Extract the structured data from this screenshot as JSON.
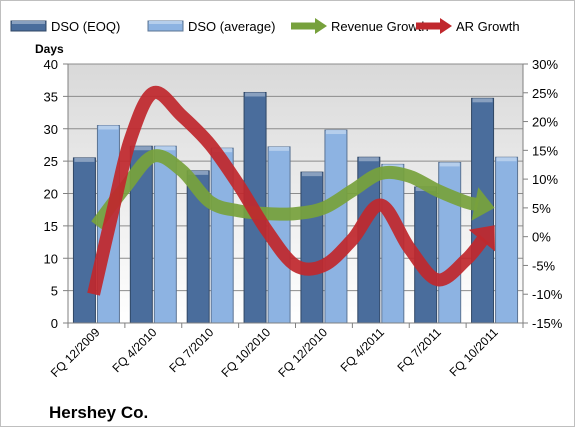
{
  "chart_data": {
    "type": "bar",
    "title": "",
    "ylabel": "Days",
    "company_label": "Hershey Co.",
    "categories": [
      "FQ 12/2009",
      "FQ 4/2010",
      "FQ 7/2010",
      "FQ 10/2010",
      "FQ 12/2010",
      "FQ 4/2011",
      "FQ 7/2011",
      "FQ 10/2011"
    ],
    "ylim": [
      0,
      40
    ],
    "y_ticks": [
      0,
      5,
      10,
      15,
      20,
      25,
      30,
      35,
      40
    ],
    "y2lim": [
      -15,
      30
    ],
    "y2_ticks": [
      "-15%",
      "-10%",
      "-5%",
      "0%",
      "5%",
      "10%",
      "15%",
      "20%",
      "25%",
      "30%"
    ],
    "legend_position": "top",
    "grid": true,
    "series": [
      {
        "name": "DSO (EOQ)",
        "kind": "bar",
        "axis": "left",
        "color": "#4a6d9c",
        "values": [
          25.5,
          27.3,
          23.5,
          35.6,
          23.3,
          25.6,
          21.0,
          34.7
        ]
      },
      {
        "name": "DSO (average)",
        "kind": "bar",
        "axis": "left",
        "color": "#8db3e2",
        "values": [
          30.5,
          27.3,
          27.0,
          27.2,
          29.8,
          24.5,
          24.8,
          25.6
        ]
      },
      {
        "name": "Revenue Growth",
        "kind": "line",
        "axis": "right",
        "color": "#77a13c",
        "x": [
          0,
          0.5,
          1,
          1.5,
          2,
          2.5,
          3,
          3.5,
          4,
          4.5,
          5,
          5.5,
          6,
          6.5,
          7
        ],
        "values": [
          2.0,
          8.5,
          14.0,
          11.5,
          6.0,
          4.5,
          4.0,
          4.0,
          5.0,
          8.0,
          11.0,
          10.5,
          8.0,
          6.0,
          5.0
        ]
      },
      {
        "name": "AR Growth",
        "kind": "line",
        "axis": "right",
        "color": "#c0282d",
        "x": [
          -0.05,
          0.3,
          0.6,
          1,
          1.5,
          2,
          2.5,
          3,
          3.5,
          4,
          4.5,
          5,
          5.5,
          6,
          6.5,
          7
        ],
        "values": [
          -10.0,
          5.0,
          17.0,
          25.0,
          21.0,
          16.0,
          9.0,
          1.0,
          -5.0,
          -5.0,
          -0.5,
          5.5,
          -2.0,
          -7.5,
          -4.0,
          2.0
        ]
      }
    ]
  }
}
